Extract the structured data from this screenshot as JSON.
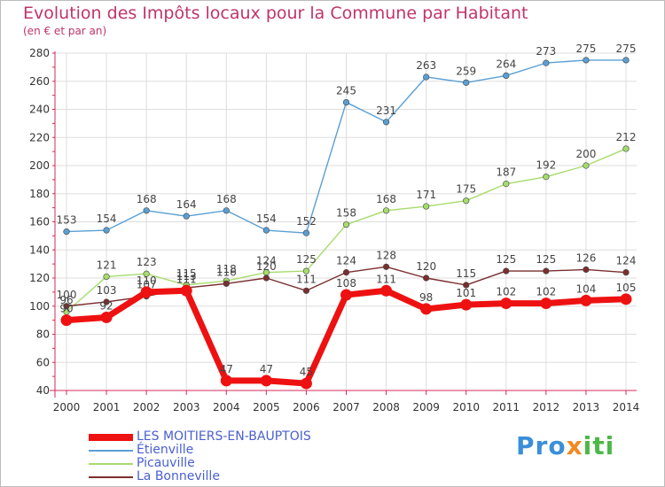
{
  "header": {
    "title": "Evolution des Impôts locaux pour la Commune par Habitant",
    "subtitle": "(en € et par an)"
  },
  "colors": {
    "title": "#c0346a",
    "axis": "#d42a5a",
    "grid": "#dddddd"
  },
  "logo": {
    "text": "Proxiti"
  },
  "chart_data": {
    "type": "line",
    "x": [
      "2000",
      "2001",
      "2002",
      "2003",
      "2004",
      "2005",
      "2006",
      "2007",
      "2008",
      "2009",
      "2010",
      "2011",
      "2012",
      "2013",
      "2014"
    ],
    "yticks": [
      40,
      60,
      80,
      100,
      120,
      140,
      160,
      180,
      200,
      220,
      240,
      260,
      280
    ],
    "ylim": [
      40,
      280
    ],
    "grid": true,
    "legend_position": "bottom-left",
    "series": [
      {
        "name": "Étienville",
        "color": "#5a9fd4",
        "values": [
          153,
          154,
          168,
          164,
          168,
          154,
          152,
          245,
          231,
          263,
          259,
          264,
          273,
          275,
          275
        ]
      },
      {
        "name": "Picauville",
        "color": "#a6dc6c",
        "values": [
          96,
          121,
          123,
          115,
          118,
          124,
          125,
          158,
          168,
          171,
          175,
          187,
          192,
          200,
          212
        ]
      },
      {
        "name": "La Bonneville",
        "color": "#7a2e2e",
        "values": [
          100,
          103,
          107,
          113,
          116,
          120,
          111,
          124,
          128,
          120,
          115,
          125,
          125,
          126,
          124
        ]
      },
      {
        "name": "LES MOITIERS-EN-BAUPTOIS",
        "color": "#ee1111",
        "values": [
          90,
          92,
          110,
          111,
          47,
          47,
          45,
          108,
          111,
          98,
          101,
          102,
          102,
          104,
          105
        ]
      }
    ],
    "legend": [
      {
        "name": "LES MOITIERS-EN-BAUPTOIS",
        "color": "#ee1111"
      },
      {
        "name": "Étienville",
        "color": "#5a9fd4"
      },
      {
        "name": "Picauville",
        "color": "#a6dc6c"
      },
      {
        "name": "La Bonneville",
        "color": "#7a2e2e"
      }
    ]
  }
}
